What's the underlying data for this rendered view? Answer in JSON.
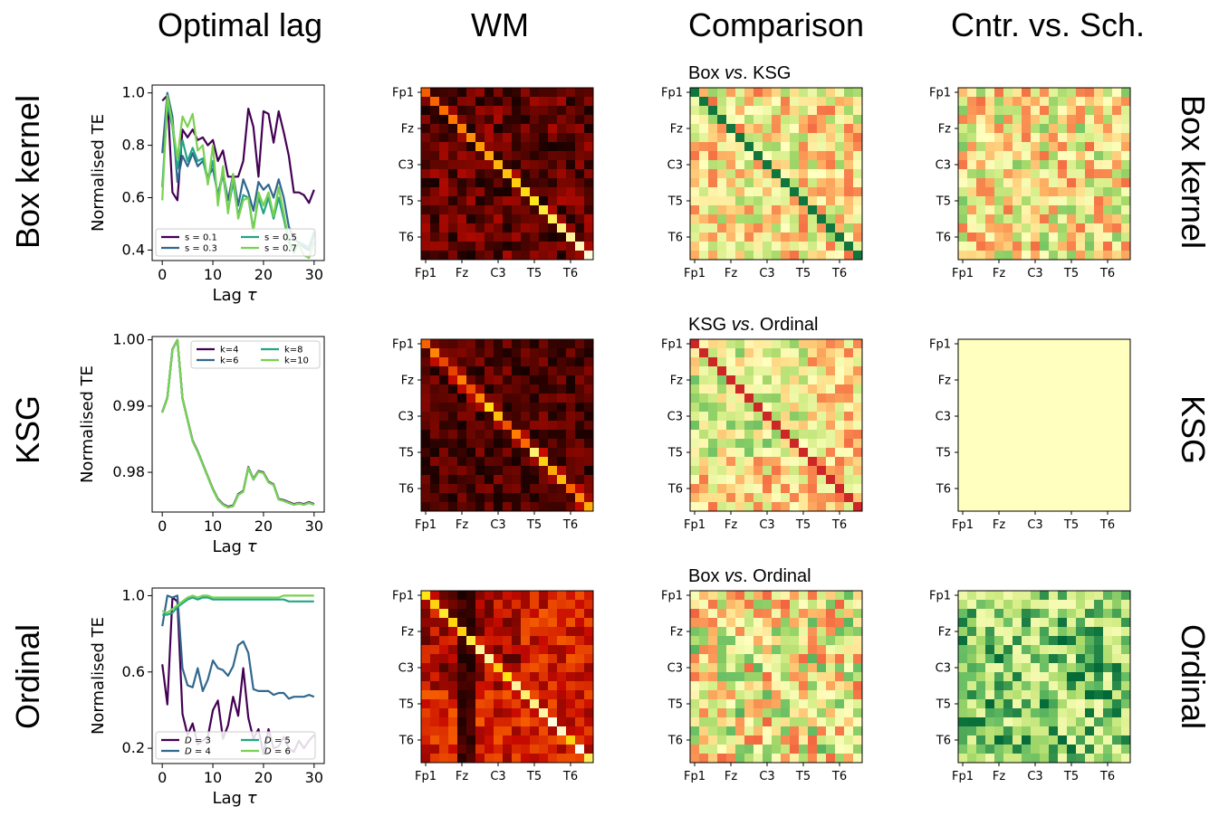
{
  "column_titles": [
    "Optimal lag",
    "WM",
    "Comparison",
    "Cntr. vs. Sch."
  ],
  "row_titles": [
    "Box kernel",
    "KSG",
    "Ordinal"
  ],
  "comparison_titles": [
    {
      "a": "Box ",
      "b": "vs",
      "c": ". KSG"
    },
    {
      "a": "KSG ",
      "b": "vs",
      "c": ". Ordinal"
    },
    {
      "a": "Box ",
      "b": "vs",
      "c": ". Ordinal"
    }
  ],
  "heatmap_tick_labels": [
    "Fp1",
    "Fz",
    "C3",
    "T5",
    "T6"
  ],
  "chart_data": [
    {
      "type": "line",
      "row": "Box kernel",
      "xlabel": "Lag τ",
      "ylabel": "Normalised TE",
      "xlim": [
        -2,
        32
      ],
      "ylim": [
        0.36,
        1.03
      ],
      "xticks": [
        0,
        10,
        20,
        30
      ],
      "yticks": [
        0.4,
        0.6,
        0.8,
        1.0
      ],
      "ytick_labels": [
        "0.4",
        "0.6",
        "0.8",
        "1.0"
      ],
      "legend_position": "lower-left",
      "legend_columns": 2,
      "x": [
        0,
        1,
        2,
        3,
        4,
        5,
        6,
        7,
        8,
        9,
        10,
        11,
        12,
        13,
        14,
        15,
        16,
        17,
        18,
        19,
        20,
        21,
        22,
        23,
        24,
        25,
        26,
        27,
        28,
        29,
        30
      ],
      "series": [
        {
          "name": "s = 0.1",
          "color": "#440154",
          "values": [
            0.97,
            0.99,
            0.62,
            0.59,
            0.86,
            0.83,
            0.86,
            0.82,
            0.83,
            0.8,
            0.82,
            0.74,
            0.78,
            0.68,
            0.68,
            0.68,
            0.74,
            0.94,
            0.87,
            0.68,
            0.93,
            0.92,
            0.81,
            0.93,
            0.85,
            0.76,
            0.62,
            0.62,
            0.61,
            0.58,
            0.63
          ]
        },
        {
          "name": "s = 0.3",
          "color": "#31688e",
          "values": [
            0.77,
            1.0,
            0.91,
            0.66,
            0.76,
            0.72,
            0.77,
            0.72,
            0.74,
            0.68,
            0.71,
            0.61,
            0.7,
            0.59,
            0.69,
            0.57,
            0.67,
            0.62,
            0.55,
            0.66,
            0.63,
            0.65,
            0.6,
            0.67,
            0.6,
            0.49,
            0.44,
            0.43,
            0.41,
            0.4,
            0.46
          ]
        },
        {
          "name": "s = 0.5",
          "color": "#21a585",
          "values": [
            0.64,
            0.96,
            0.87,
            0.71,
            0.82,
            0.74,
            0.79,
            0.74,
            0.75,
            0.66,
            0.74,
            0.6,
            0.69,
            0.55,
            0.66,
            0.53,
            0.61,
            0.6,
            0.48,
            0.6,
            0.54,
            0.6,
            0.52,
            0.6,
            0.52,
            0.43,
            0.39,
            0.43,
            0.42,
            0.41,
            0.47
          ]
        },
        {
          "name": "s = 0.7",
          "color": "#7ad151",
          "values": [
            0.59,
            0.99,
            0.88,
            0.75,
            0.91,
            0.87,
            0.92,
            0.78,
            0.8,
            0.65,
            0.8,
            0.57,
            0.72,
            0.54,
            0.69,
            0.52,
            0.59,
            0.6,
            0.47,
            0.62,
            0.57,
            0.62,
            0.53,
            0.64,
            0.54,
            0.44,
            0.4,
            0.42,
            0.38,
            0.37,
            0.43
          ]
        }
      ]
    },
    {
      "type": "line",
      "row": "KSG",
      "xlabel": "Lag τ",
      "ylabel": "Normalised TE",
      "xlim": [
        -2,
        32
      ],
      "ylim": [
        0.974,
        1.0005
      ],
      "xticks": [
        0,
        10,
        20,
        30
      ],
      "yticks": [
        0.98,
        0.99,
        1.0
      ],
      "ytick_labels": [
        "0.98",
        "0.99",
        "1.00"
      ],
      "legend_position": "top-right",
      "legend_columns": 2,
      "x": [
        0,
        1,
        2,
        3,
        4,
        5,
        6,
        7,
        8,
        9,
        10,
        11,
        12,
        13,
        14,
        15,
        16,
        17,
        18,
        19,
        20,
        21,
        22,
        23,
        24,
        25,
        26,
        27,
        28,
        29,
        30
      ],
      "series": [
        {
          "name": "k=4",
          "color": "#440154",
          "values": [
            0.9891,
            0.9912,
            0.9985,
            1.0,
            0.9912,
            0.988,
            0.9848,
            0.9832,
            0.9813,
            0.9794,
            0.9775,
            0.976,
            0.9752,
            0.9748,
            0.975,
            0.9767,
            0.9772,
            0.9808,
            0.979,
            0.9802,
            0.98,
            0.9786,
            0.9782,
            0.976,
            0.9758,
            0.9755,
            0.9752,
            0.9754,
            0.9752,
            0.9755,
            0.9752
          ]
        },
        {
          "name": "k=6",
          "color": "#31688e",
          "values": [
            0.9891,
            0.9913,
            0.9986,
            1.0,
            0.9911,
            0.9879,
            0.9847,
            0.9831,
            0.9812,
            0.9793,
            0.9774,
            0.9759,
            0.9751,
            0.9747,
            0.9749,
            0.9766,
            0.9771,
            0.9807,
            0.9789,
            0.9801,
            0.9799,
            0.9785,
            0.9781,
            0.9759,
            0.9757,
            0.9754,
            0.9751,
            0.9753,
            0.9751,
            0.9754,
            0.9751
          ]
        },
        {
          "name": "k=8",
          "color": "#21a585",
          "values": [
            0.989,
            0.9912,
            0.9985,
            1.0,
            0.9911,
            0.9879,
            0.9847,
            0.9831,
            0.9812,
            0.9793,
            0.9774,
            0.9759,
            0.9751,
            0.9747,
            0.9749,
            0.9766,
            0.9771,
            0.9807,
            0.9789,
            0.9801,
            0.9799,
            0.9785,
            0.9781,
            0.9759,
            0.9757,
            0.9754,
            0.9751,
            0.9753,
            0.9751,
            0.9754,
            0.9751
          ]
        },
        {
          "name": "k=10",
          "color": "#7ad151",
          "values": [
            0.989,
            0.9912,
            0.9985,
            1.0,
            0.9911,
            0.9879,
            0.9847,
            0.9831,
            0.9812,
            0.9793,
            0.9774,
            0.9759,
            0.9751,
            0.9747,
            0.9749,
            0.9766,
            0.9771,
            0.9807,
            0.9789,
            0.9801,
            0.9799,
            0.9785,
            0.9781,
            0.9759,
            0.9757,
            0.9754,
            0.9751,
            0.9753,
            0.9751,
            0.9754,
            0.9751
          ]
        }
      ]
    },
    {
      "type": "line",
      "row": "Ordinal",
      "xlabel": "Lag τ",
      "ylabel": "Normalised TE",
      "xlim": [
        -2,
        32
      ],
      "ylim": [
        0.12,
        1.04
      ],
      "xticks": [
        0,
        10,
        20,
        30
      ],
      "yticks": [
        0.2,
        0.6,
        1.0
      ],
      "ytick_labels": [
        "0.2",
        "0.6",
        "1.0"
      ],
      "legend_position": "lower-left",
      "legend_columns": 2,
      "x": [
        0,
        1,
        2,
        3,
        4,
        5,
        6,
        7,
        8,
        9,
        10,
        11,
        12,
        13,
        14,
        15,
        16,
        17,
        18,
        19,
        20,
        21,
        22,
        23,
        24,
        25,
        26,
        27,
        28,
        29,
        30
      ],
      "series": [
        {
          "name": "D = 3",
          "color": "#440154",
          "values": [
            0.64,
            0.43,
            0.99,
            0.97,
            0.38,
            0.27,
            0.33,
            0.22,
            0.24,
            0.26,
            0.4,
            0.45,
            0.25,
            0.32,
            0.47,
            0.37,
            0.62,
            0.36,
            0.25,
            0.3,
            0.17,
            0.3,
            0.2,
            0.21,
            0.26,
            0.2,
            0.18,
            0.24,
            0.2,
            0.24,
            0.27
          ]
        },
        {
          "name": "D = 4",
          "color": "#31688e",
          "values": [
            0.84,
            1.0,
            0.99,
            1.0,
            0.62,
            0.53,
            0.52,
            0.62,
            0.5,
            0.56,
            0.66,
            0.62,
            0.61,
            0.58,
            0.63,
            0.74,
            0.76,
            0.7,
            0.51,
            0.5,
            0.5,
            0.5,
            0.48,
            0.49,
            0.49,
            0.46,
            0.47,
            0.47,
            0.47,
            0.48,
            0.47
          ]
        },
        {
          "name": "D = 5",
          "color": "#21a585",
          "values": [
            0.9,
            0.9,
            0.91,
            0.94,
            0.96,
            0.98,
            0.99,
            0.98,
            0.99,
            0.99,
            0.98,
            0.98,
            0.98,
            0.98,
            0.98,
            0.98,
            0.98,
            0.98,
            0.98,
            0.98,
            0.98,
            0.98,
            0.98,
            0.98,
            0.98,
            0.97,
            0.97,
            0.97,
            0.97,
            0.97,
            0.97
          ]
        },
        {
          "name": "D = 6",
          "color": "#7ad151",
          "values": [
            0.92,
            0.91,
            0.93,
            0.95,
            0.97,
            0.99,
            1.0,
            0.99,
            1.0,
            1.0,
            0.99,
            0.99,
            0.99,
            0.99,
            0.99,
            0.99,
            0.99,
            0.99,
            0.99,
            0.99,
            0.99,
            0.99,
            0.99,
            0.99,
            1.0,
            1.0,
            1.0,
            1.0,
            1.0,
            1.0,
            1.0
          ]
        }
      ]
    },
    {
      "type": "heatmap",
      "row": "Box kernel",
      "column": "WM",
      "colormap": "hot",
      "size": 19,
      "pattern": "strong-diagonal",
      "seed": 11,
      "ticks": [
        "Fp1",
        "Fz",
        "C3",
        "T5",
        "T6"
      ]
    },
    {
      "type": "heatmap",
      "row": "KSG",
      "column": "WM",
      "colormap": "hot",
      "size": 19,
      "pattern": "diagonal",
      "seed": 23,
      "ticks": [
        "Fp1",
        "Fz",
        "C3",
        "T5",
        "T6"
      ]
    },
    {
      "type": "heatmap",
      "row": "Ordinal",
      "column": "WM",
      "colormap": "hot",
      "size": 19,
      "pattern": "bright-lower",
      "seed": 37,
      "ticks": [
        "Fp1",
        "Fz",
        "C3",
        "T5",
        "T6"
      ]
    },
    {
      "type": "heatmap",
      "row": "Box kernel",
      "column": "Comparison",
      "title": "Box vs. KSG",
      "colormap": "RdYlGn",
      "size": 19,
      "pattern": "green-diagonal",
      "seed": 41,
      "ticks": [
        "Fp1",
        "Fz",
        "C3",
        "T5",
        "T6"
      ]
    },
    {
      "type": "heatmap",
      "row": "KSG",
      "column": "Comparison",
      "title": "KSG vs. Ordinal",
      "colormap": "RdYlGn",
      "size": 19,
      "pattern": "red-diagonal",
      "seed": 53,
      "ticks": [
        "Fp1",
        "Fz",
        "C3",
        "T5",
        "T6"
      ]
    },
    {
      "type": "heatmap",
      "row": "Ordinal",
      "column": "Comparison",
      "title": "Box vs. Ordinal",
      "colormap": "RdYlGn",
      "size": 19,
      "pattern": "mixed",
      "seed": 67,
      "ticks": [
        "Fp1",
        "Fz",
        "C3",
        "T5",
        "T6"
      ]
    },
    {
      "type": "heatmap",
      "row": "Box kernel",
      "column": "Cntr. vs. Sch.",
      "colormap": "RdYlGn",
      "size": 19,
      "pattern": "mixed-pale",
      "seed": 79,
      "ticks": [
        "Fp1",
        "Fz",
        "C3",
        "T5",
        "T6"
      ]
    },
    {
      "type": "heatmap",
      "row": "KSG",
      "column": "Cntr. vs. Sch.",
      "colormap": "RdYlGn",
      "size": 19,
      "pattern": "uniform",
      "seed": 83,
      "ticks": [
        "Fp1",
        "Fz",
        "C3",
        "T5",
        "T6"
      ]
    },
    {
      "type": "heatmap",
      "row": "Ordinal",
      "column": "Cntr. vs. Sch.",
      "colormap": "RdYlGn",
      "size": 19,
      "pattern": "green",
      "seed": 97,
      "ticks": [
        "Fp1",
        "Fz",
        "C3",
        "T5",
        "T6"
      ]
    }
  ]
}
